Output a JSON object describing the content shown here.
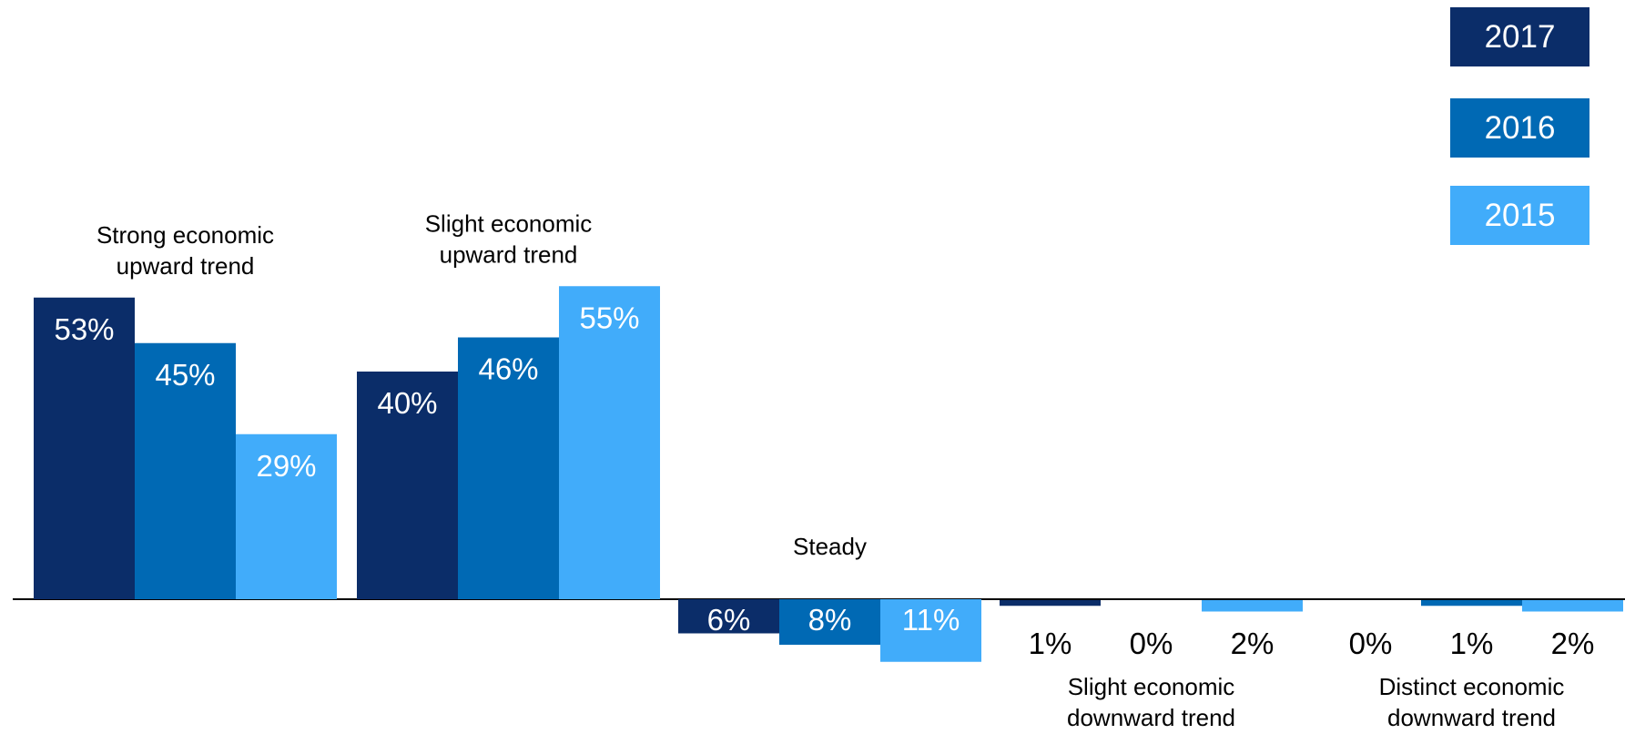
{
  "chart_data": {
    "type": "bar",
    "categories": [
      "Strong economic upward trend",
      "Slight economic upward trend",
      "Steady",
      "Slight economic downward trend",
      "Distinct economic downward trend"
    ],
    "category_lines": [
      [
        "Strong economic",
        "upward trend"
      ],
      [
        "Slight economic",
        "upward trend"
      ],
      [
        "Steady"
      ],
      [
        "Slight economic",
        "downward trend"
      ],
      [
        "Distinct economic",
        "downward trend"
      ]
    ],
    "direction": [
      1,
      1,
      0,
      -1,
      -1
    ],
    "series": [
      {
        "name": "2017",
        "color": "#0b2d69",
        "values": [
          53,
          40,
          6,
          1,
          0
        ],
        "labels": [
          "53%",
          "40%",
          "6%",
          "1%",
          "0%"
        ]
      },
      {
        "name": "2016",
        "color": "#0069b4",
        "values": [
          45,
          46,
          8,
          0,
          1
        ],
        "labels": [
          "45%",
          "46%",
          "8%",
          "0%",
          "1%"
        ]
      },
      {
        "name": "2015",
        "color": "#41acfa",
        "values": [
          29,
          55,
          11,
          2,
          2
        ],
        "labels": [
          "29%",
          "55%",
          "11%",
          "2%",
          "2%"
        ]
      }
    ],
    "legend_position": "top-right",
    "grid": false
  }
}
